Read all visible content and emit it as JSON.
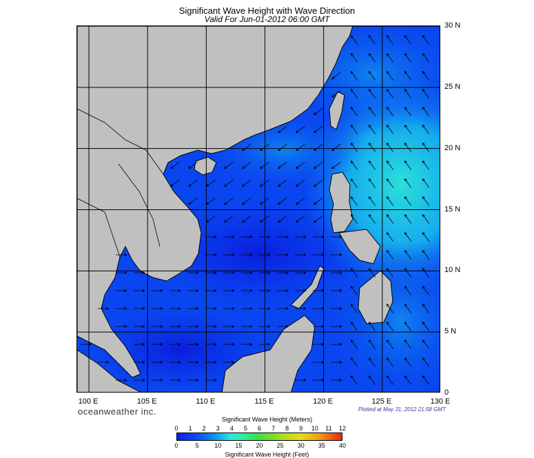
{
  "title": "Significant Wave Height with Wave Direction",
  "subtitle": "Valid For Jun-01-2012 06:00 GMT",
  "map": {
    "lon_range": [
      99,
      130
    ],
    "lat_range": [
      0,
      30
    ],
    "lon_labels": [
      "100 E",
      "105 E",
      "110 E",
      "115 E",
      "120 E",
      "125 E",
      "130 E"
    ],
    "lat_labels": [
      "30 N",
      "25 N",
      "20 N",
      "15 N",
      "10 N",
      "5 N",
      "0"
    ],
    "land_color": "#c0c0c0",
    "grid": true
  },
  "branding": "oceanweather inc.",
  "plotted": "Plotted at May 31, 2012 21:58 GMT",
  "colorbar": {
    "title_meters": "Significant Wave Height (Meters)",
    "title_feet": "Significant Wave Height (Feet)",
    "meters_ticks": [
      "0",
      "1",
      "2",
      "3",
      "4",
      "5",
      "6",
      "7",
      "8",
      "9",
      "10",
      "11",
      "12"
    ],
    "feet_ticks": [
      "0",
      "5",
      "10",
      "15",
      "20",
      "25",
      "30",
      "35",
      "40"
    ]
  }
}
